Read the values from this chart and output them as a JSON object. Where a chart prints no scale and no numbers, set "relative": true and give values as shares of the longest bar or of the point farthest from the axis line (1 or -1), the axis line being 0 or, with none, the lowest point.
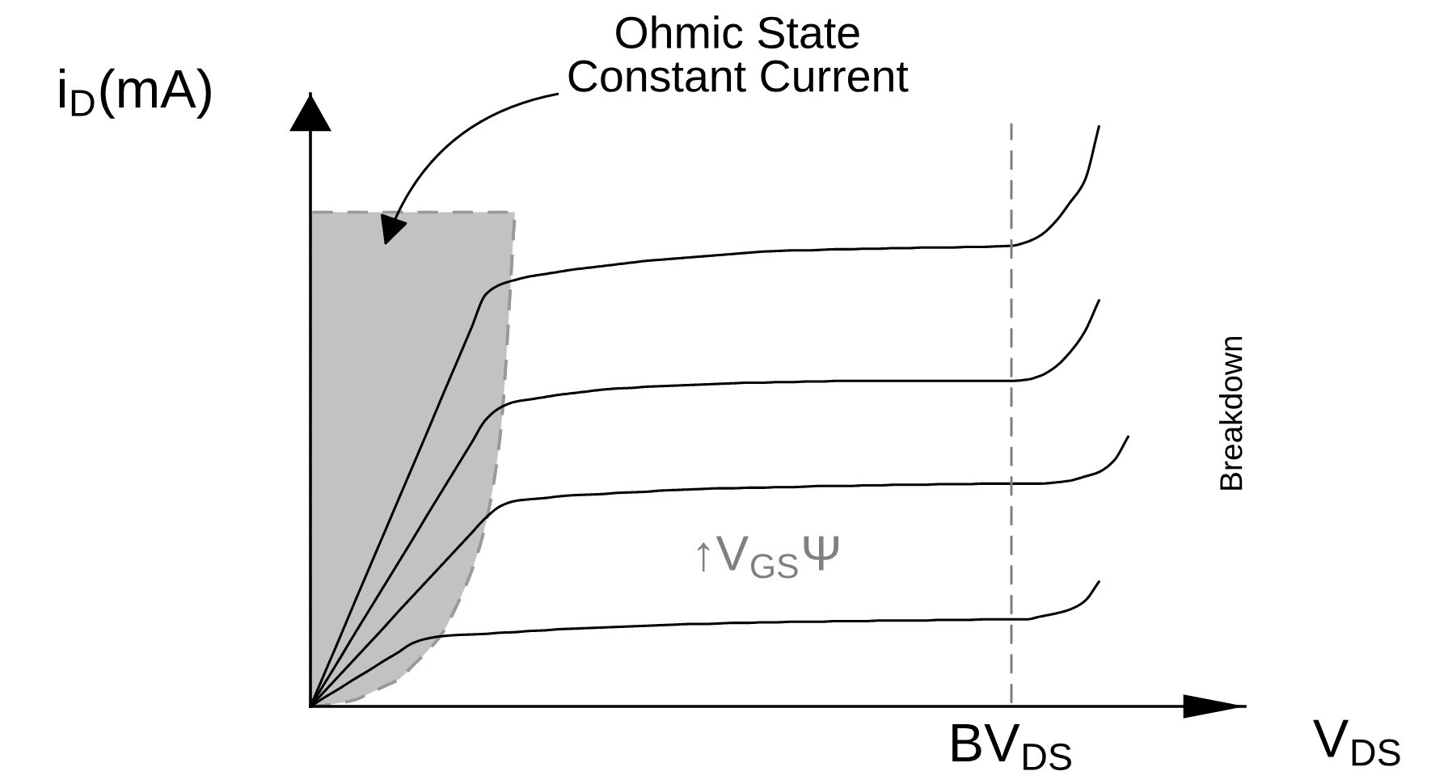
{
  "chart_data": {
    "type": "line",
    "relative": true,
    "xlabel": "V$_{DS}$",
    "ylabel": "i$_{D}$(mA)",
    "categories": [
      null,
      null,
      null,
      null,
      null,
      null,
      null,
      null,
      null,
      null,
      null,
      null,
      null,
      null,
      null,
      null,
      null,
      null,
      null,
      null,
      null,
      null,
      null,
      null,
      null,
      null,
      null,
      null,
      null,
      null,
      null,
      null,
      null,
      null,
      null,
      null,
      null,
      null,
      null,
      null,
      null,
      null,
      null,
      null,
      null,
      null,
      null,
      null,
      null,
      null,
      null,
      null,
      null,
      null,
      null,
      null,
      null,
      null,
      null,
      null,
      null,
      null,
      null,
      null,
      null
    ],
    "series": [
      {
        "color": "#999999",
        "line_style": "dashed",
        "values": [
          0,
          0.002,
          0.006,
          0.011,
          0.022,
          0.034,
          0.046,
          0.07,
          0.095,
          0.125,
          0.173,
          0.231,
          0.315,
          0.468,
          0.852,
          null,
          null,
          null,
          null,
          null,
          null,
          null,
          null,
          null,
          null,
          null,
          null,
          null,
          null,
          null,
          null,
          null,
          null,
          null,
          null,
          null,
          null,
          null,
          null,
          null,
          null,
          null,
          null,
          null,
          null,
          null,
          null,
          null,
          null,
          null,
          null,
          null,
          null,
          null,
          null,
          null,
          null,
          null,
          null,
          null,
          null,
          null,
          null,
          null,
          null
        ],
        "lower": [
          0,
          0.002,
          0.006,
          0.011,
          0.022,
          0.034,
          0.046,
          0.07,
          0.095,
          0.125,
          0.173,
          0.231,
          0.315,
          0.468,
          0.852,
          null,
          null,
          null,
          null,
          null,
          null,
          null,
          null,
          null,
          null,
          null,
          null,
          null,
          null,
          null,
          null,
          null,
          null,
          null,
          null,
          null,
          null,
          null,
          null,
          null,
          null,
          null,
          null,
          null,
          null,
          null,
          null,
          null,
          null,
          null,
          null,
          null,
          null,
          null,
          null,
          null,
          null,
          null,
          null,
          null,
          null,
          null,
          null,
          null,
          null
        ],
        "upper": [
          0.852,
          0.852,
          0.852,
          0.852,
          0.852,
          0.852,
          0.852,
          0.852,
          0.852,
          0.852,
          0.852,
          0.852,
          0.852,
          0.852,
          0.852,
          null,
          null,
          null,
          null,
          null,
          null,
          null,
          null,
          null,
          null,
          null,
          null,
          null,
          null,
          null,
          null,
          null,
          null,
          null,
          null,
          null,
          null,
          null,
          null,
          null,
          null,
          null,
          null,
          null,
          null,
          null,
          null,
          null,
          null,
          null,
          null,
          null,
          null,
          null,
          null,
          null,
          null,
          null,
          null,
          null,
          null,
          null,
          null,
          null,
          null
        ]
      },
      {
        "color": "#000000",
        "values": [
          0,
          0.059,
          0.118,
          0.178,
          0.237,
          0.296,
          0.355,
          0.414,
          0.473,
          0.533,
          0.592,
          0.651,
          0.71,
          0.727,
          0.735,
          0.741,
          0.745,
          0.749,
          0.753,
          0.756,
          0.759,
          0.762,
          0.765,
          0.768,
          0.77,
          0.772,
          0.774,
          0.776,
          0.778,
          0.78,
          0.782,
          0.784,
          0.785,
          0.786,
          0.786,
          0.787,
          0.788,
          0.788,
          0.789,
          0.789,
          0.79,
          0.79,
          0.791,
          0.791,
          0.791,
          0.792,
          0.792,
          0.793,
          0.794,
          0.8,
          0.812,
          0.835,
          0.868,
          0.905,
          1.0,
          null,
          null,
          null,
          null,
          null,
          null,
          null,
          null,
          null,
          null
        ]
      },
      {
        "color": "#000000",
        "values": [
          0,
          0.041,
          0.082,
          0.124,
          0.165,
          0.206,
          0.247,
          0.288,
          0.33,
          0.371,
          0.412,
          0.453,
          0.494,
          0.515,
          0.525,
          0.529,
          0.533,
          0.537,
          0.54,
          0.543,
          0.546,
          0.548,
          0.549,
          0.551,
          0.552,
          0.553,
          0.554,
          0.555,
          0.556,
          0.557,
          0.558,
          0.558,
          0.559,
          0.559,
          0.56,
          0.56,
          0.561,
          0.561,
          0.561,
          0.561,
          0.561,
          0.561,
          0.561,
          0.561,
          0.561,
          0.561,
          0.561,
          0.561,
          0.561,
          0.563,
          0.57,
          0.585,
          0.61,
          0.645,
          0.7,
          null,
          null,
          null,
          null,
          null,
          null,
          null,
          null,
          null,
          null
        ]
      },
      {
        "color": "#000000",
        "values": [
          0,
          0.027,
          0.054,
          0.081,
          0.108,
          0.135,
          0.163,
          0.19,
          0.217,
          0.244,
          0.271,
          0.298,
          0.325,
          0.345,
          0.354,
          0.357,
          0.359,
          0.362,
          0.364,
          0.365,
          0.366,
          0.368,
          0.369,
          0.37,
          0.372,
          0.373,
          0.374,
          0.375,
          0.376,
          0.376,
          0.377,
          0.377,
          0.378,
          0.378,
          0.379,
          0.38,
          0.38,
          0.38,
          0.381,
          0.381,
          0.382,
          0.382,
          0.382,
          0.383,
          0.383,
          0.383,
          0.384,
          0.384,
          0.384,
          0.384,
          0.384,
          0.386,
          0.389,
          0.396,
          0.404,
          0.423,
          0.465,
          null,
          null,
          null,
          null,
          null,
          null,
          null,
          null
        ]
      },
      {
        "color": "#000000",
        "values": [
          0,
          0.016,
          0.031,
          0.047,
          0.062,
          0.078,
          0.093,
          0.109,
          0.117,
          0.121,
          0.123,
          0.124,
          0.125,
          0.127,
          0.128,
          0.13,
          0.131,
          0.133,
          0.134,
          0.135,
          0.136,
          0.137,
          0.138,
          0.139,
          0.14,
          0.141,
          0.142,
          0.142,
          0.143,
          0.144,
          0.144,
          0.145,
          0.145,
          0.146,
          0.146,
          0.146,
          0.147,
          0.147,
          0.147,
          0.148,
          0.148,
          0.148,
          0.148,
          0.149,
          0.149,
          0.149,
          0.15,
          0.15,
          0.15,
          0.15,
          0.155,
          0.16,
          0.167,
          0.181,
          0.215,
          null,
          null,
          null,
          null,
          null,
          null,
          null,
          null,
          null,
          null
        ]
      }
    ],
    "annotations": [
      "Ohmic State\nConstant Current",
      "↑V$_{GS}$Ψ",
      "Breakdown",
      "BV$_{DS}$"
    ]
  }
}
